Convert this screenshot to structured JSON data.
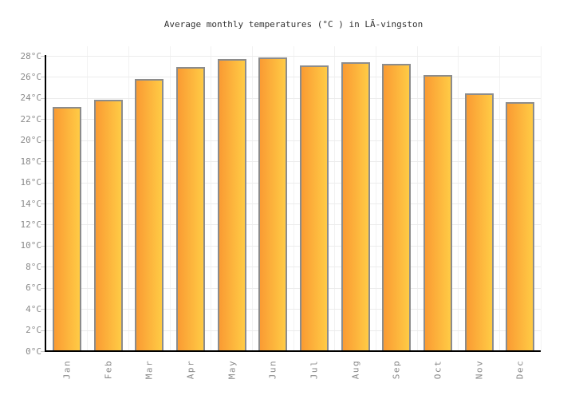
{
  "chart_data": {
    "type": "bar",
    "title": "Average monthly temperatures (°C ) in LĂ-vingston",
    "categories": [
      "Jan",
      "Feb",
      "Mar",
      "Apr",
      "May",
      "Jun",
      "Jul",
      "Aug",
      "Sep",
      "Oct",
      "Nov",
      "Dec"
    ],
    "values": [
      23.1,
      23.8,
      25.7,
      26.9,
      27.6,
      27.8,
      27.0,
      27.3,
      27.2,
      26.1,
      24.4,
      23.5
    ],
    "ylabel": "",
    "xlabel": "",
    "unit": "°C",
    "ytick_suffix": "°C",
    "ylim": [
      0,
      28
    ],
    "ytick_step": 2,
    "grid": true,
    "legend": "none",
    "colors": {
      "bar_gradient_left": "#fa9b33",
      "bar_gradient_right": "#ffcb45",
      "bar_border": "#8c8c8c",
      "grid_line": "#ececec",
      "axis_line": "#000000",
      "tick_label": "#8a8a8a",
      "title_text": "#333333",
      "background": "#ffffff"
    }
  }
}
